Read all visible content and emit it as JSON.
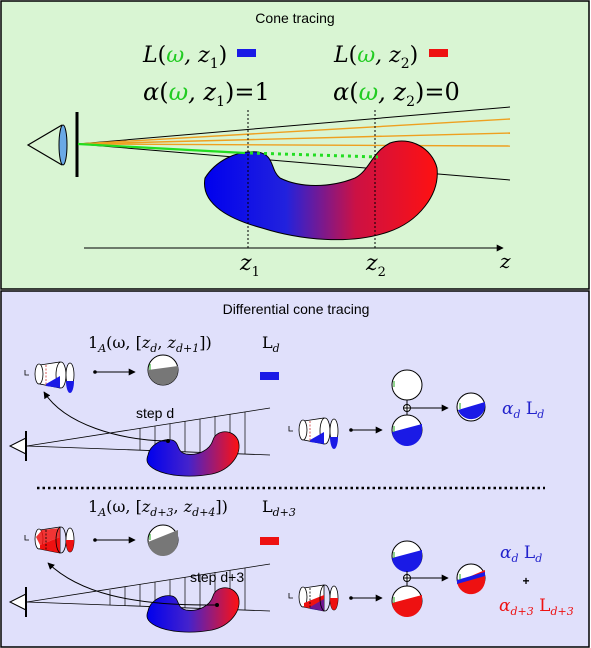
{
  "top_panel": {
    "title": "Cone tracing",
    "L1": {
      "sym": "L",
      "open": "(",
      "omega": "ω",
      "sep": ", z",
      "sub": "1",
      "close": ")"
    },
    "L2": {
      "sym": "L",
      "open": "(",
      "omega": "ω",
      "sep": ", z",
      "sub": "2",
      "close": ")"
    },
    "A1": {
      "sym": "α",
      "open": "(",
      "omega": "ω",
      "sep": ", z",
      "sub": "1",
      "close": ")",
      "eq": "=1"
    },
    "A2": {
      "sym": "α",
      "open": "(",
      "omega": "ω",
      "sep": ", z",
      "sub": "2",
      "close": ")",
      "eq": "=0"
    },
    "z1": {
      "z": "z",
      "sub": "1"
    },
    "z2": {
      "z": "z",
      "sub": "2"
    },
    "z_axis": "z",
    "colors": {
      "background": "#d9f5d3",
      "blue": "#1a1ae6",
      "red": "#ee1111",
      "green": "#22dd22",
      "orange": "#eea020"
    }
  },
  "bottom_panel": {
    "title": "Differential cone tracing",
    "ind1": {
      "one": "1",
      "A": "A",
      "open": "(ω, [",
      "z1": "z",
      "s1": "d",
      "comma": ", ",
      "z2": "z",
      "s2": "d+1",
      "close": "])"
    },
    "Ld": {
      "L": "L",
      "sub": "d"
    },
    "step_d": "step d",
    "ind2": {
      "one": "1",
      "A": "A",
      "open": "(ω, [",
      "z1": "z",
      "s1": "d+3",
      "comma": ", ",
      "z2": "z",
      "s2": "d+4",
      "close": "])"
    },
    "Ld3": {
      "L": "L",
      "sub": "d+3"
    },
    "step_d3": "step d+3",
    "result1": {
      "alpha": "α",
      "sub": "d",
      "L": " L",
      "Lsub": "d"
    },
    "result2_a": {
      "alpha": "α",
      "sub": "d",
      "L": " L",
      "Lsub": "d"
    },
    "plus": "+",
    "result2_b": {
      "alpha": "α",
      "sub": "d+3",
      "L": " L",
      "Lsub": "d+3"
    },
    "colors": {
      "background": "#e0e0fb"
    }
  }
}
